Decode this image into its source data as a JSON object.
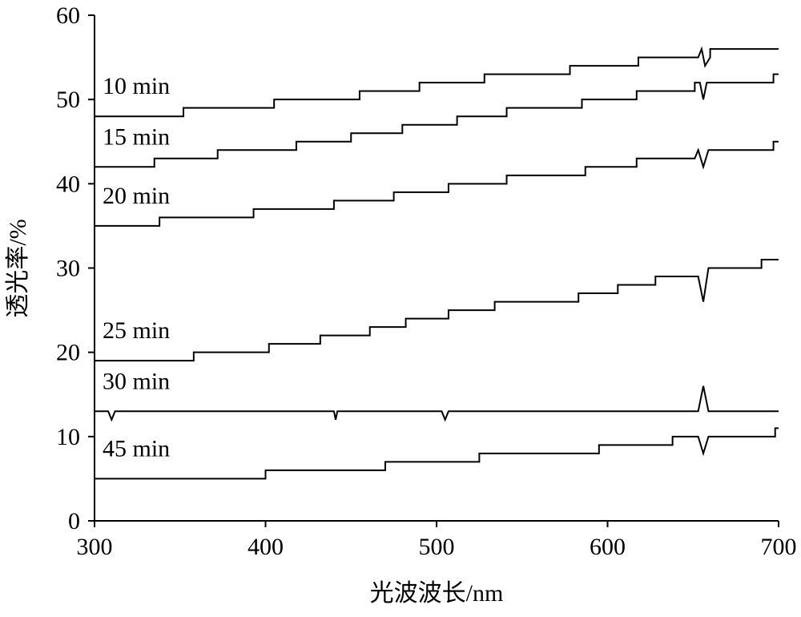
{
  "chart_data": {
    "type": "line",
    "xlabel": "光波波长/nm",
    "ylabel": "透光率/%",
    "xlim": [
      300,
      700
    ],
    "xticks": [
      300,
      400,
      500,
      600,
      700
    ],
    "ylim": [
      0,
      60
    ],
    "yticks": [
      0,
      10,
      20,
      30,
      40,
      50,
      60
    ],
    "color": "#000000",
    "series": [
      {
        "name": "10 min",
        "x": [
          300,
          352,
          352,
          405,
          405,
          455,
          455,
          490,
          490,
          528,
          528,
          578,
          578,
          618,
          618,
          653,
          655,
          657,
          660,
          660,
          700
        ],
        "values": [
          48,
          48,
          49,
          49,
          50,
          50,
          51,
          51,
          52,
          52,
          53,
          53,
          54,
          54,
          55,
          55,
          56,
          54,
          55,
          56,
          56
        ]
      },
      {
        "name": "15 min",
        "x": [
          300,
          335,
          335,
          372,
          372,
          418,
          418,
          450,
          450,
          480,
          480,
          512,
          512,
          541,
          541,
          585,
          585,
          617,
          617,
          651,
          651,
          654,
          656,
          658,
          697,
          697,
          700
        ],
        "values": [
          42,
          42,
          43,
          43,
          44,
          44,
          45,
          45,
          46,
          46,
          47,
          47,
          48,
          48,
          49,
          49,
          50,
          50,
          51,
          51,
          52,
          52,
          50,
          52,
          52,
          53,
          53
        ]
      },
      {
        "name": "20 min",
        "x": [
          300,
          338,
          338,
          393,
          393,
          440,
          440,
          475,
          475,
          507,
          507,
          541,
          541,
          587,
          587,
          617,
          617,
          651,
          653,
          656,
          659,
          697,
          697,
          700
        ],
        "values": [
          35,
          35,
          36,
          36,
          37,
          37,
          38,
          38,
          39,
          39,
          40,
          40,
          41,
          41,
          42,
          42,
          43,
          43,
          44,
          42,
          44,
          44,
          45,
          45
        ]
      },
      {
        "name": "25 min",
        "x": [
          300,
          358,
          358,
          402,
          402,
          432,
          432,
          461,
          461,
          482,
          482,
          507,
          507,
          534,
          534,
          583,
          583,
          606,
          606,
          628,
          628,
          653,
          656,
          659,
          690,
          690,
          700
        ],
        "values": [
          19,
          19,
          20,
          20,
          21,
          21,
          22,
          22,
          23,
          23,
          24,
          24,
          25,
          25,
          26,
          26,
          27,
          27,
          28,
          28,
          29,
          29,
          26,
          30,
          30,
          31,
          31
        ]
      },
      {
        "name": "30 min",
        "x": [
          300,
          308,
          310,
          312,
          440,
          441,
          442,
          503,
          505,
          507,
          653,
          656,
          659,
          700
        ],
        "values": [
          13,
          13,
          12,
          13,
          13,
          12,
          13,
          13,
          12,
          13,
          13,
          16,
          13,
          13
        ]
      },
      {
        "name": "45 min",
        "x": [
          300,
          400,
          400,
          470,
          470,
          525,
          525,
          595,
          595,
          638,
          638,
          653,
          656,
          659,
          698,
          698,
          700
        ],
        "values": [
          5,
          5,
          6,
          6,
          7,
          7,
          8,
          8,
          9,
          9,
          10,
          10,
          8,
          10,
          10,
          11,
          11
        ]
      }
    ]
  }
}
